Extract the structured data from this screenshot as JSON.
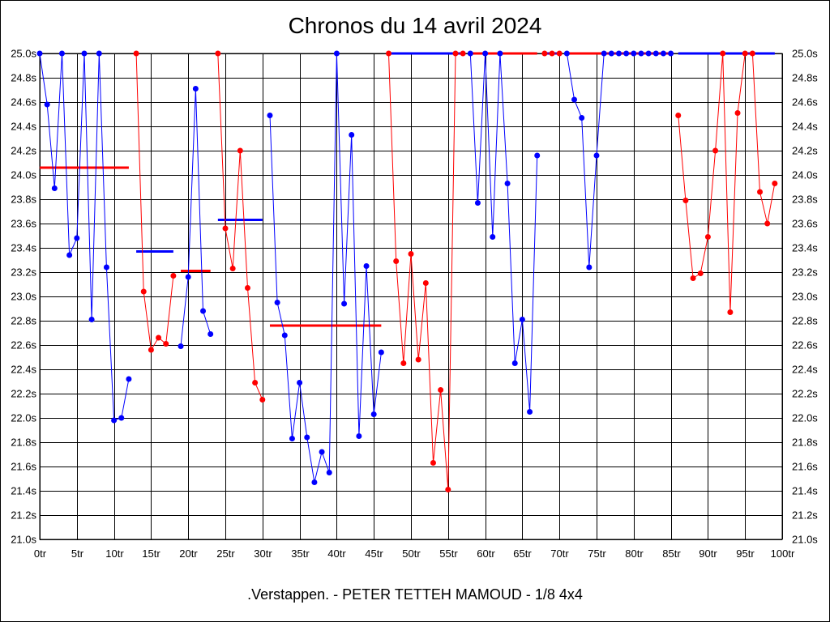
{
  "chart_data": {
    "type": "line",
    "title": "Chronos du 14 avril 2024",
    "footer": ".Verstappen. - PETER TETTEH MAMOUD - 1/8 4x4",
    "xlabel": "",
    "ylabel": "",
    "xlim": [
      0,
      100
    ],
    "ylim": [
      21.0,
      25.0
    ],
    "grid": true,
    "x_ticks": [
      "0tr",
      "5tr",
      "10tr",
      "15tr",
      "20tr",
      "25tr",
      "30tr",
      "35tr",
      "40tr",
      "45tr",
      "50tr",
      "55tr",
      "60tr",
      "65tr",
      "70tr",
      "75tr",
      "80tr",
      "85tr",
      "90tr",
      "95tr",
      "100tr"
    ],
    "y_ticks": [
      "21.0s",
      "21.2s",
      "21.4s",
      "21.6s",
      "21.8s",
      "22.0s",
      "22.2s",
      "22.4s",
      "22.6s",
      "22.8s",
      "23.0s",
      "23.2s",
      "23.4s",
      "23.6s",
      "23.8s",
      "24.0s",
      "24.2s",
      "24.4s",
      "24.6s",
      "24.8s",
      "25.0s"
    ],
    "colors": {
      "blue": "#0000ff",
      "red": "#ff0000"
    },
    "series": [
      {
        "color": "#0000ff",
        "points": [
          [
            0,
            25.0
          ],
          [
            1,
            24.58
          ],
          [
            2,
            23.89
          ],
          [
            3,
            25.0
          ],
          [
            4,
            23.34
          ],
          [
            5,
            23.48
          ],
          [
            6,
            25.0
          ],
          [
            7,
            22.81
          ],
          [
            8,
            25.0
          ],
          [
            9,
            23.24
          ],
          [
            10,
            21.98
          ],
          [
            11,
            22.0
          ],
          [
            12,
            22.32
          ]
        ]
      },
      {
        "color": "#ff0000",
        "points": [
          [
            13,
            25.0
          ],
          [
            14,
            23.04
          ],
          [
            15,
            22.56
          ],
          [
            16,
            22.66
          ],
          [
            17,
            22.61
          ],
          [
            18,
            23.17
          ]
        ]
      },
      {
        "color": "#0000ff",
        "points": [
          [
            19,
            22.59
          ],
          [
            20,
            23.16
          ],
          [
            21,
            24.71
          ],
          [
            22,
            22.88
          ],
          [
            23,
            22.69
          ]
        ]
      },
      {
        "color": "#ff0000",
        "points": [
          [
            24,
            25.0
          ],
          [
            25,
            23.56
          ],
          [
            26,
            23.23
          ],
          [
            27,
            24.2
          ],
          [
            28,
            23.07
          ],
          [
            29,
            22.29
          ],
          [
            30,
            22.15
          ]
        ]
      },
      {
        "color": "#0000ff",
        "points": [
          [
            31,
            24.49
          ],
          [
            32,
            22.95
          ],
          [
            33,
            22.68
          ],
          [
            34,
            21.83
          ],
          [
            35,
            22.29
          ],
          [
            36,
            21.84
          ],
          [
            37,
            21.47
          ],
          [
            38,
            21.72
          ],
          [
            39,
            21.55
          ],
          [
            40,
            25.0
          ],
          [
            41,
            22.94
          ],
          [
            42,
            24.33
          ],
          [
            43,
            21.85
          ],
          [
            44,
            23.25
          ],
          [
            45,
            22.03
          ],
          [
            46,
            22.54
          ]
        ]
      },
      {
        "color": "#ff0000",
        "points": [
          [
            47,
            25.0
          ],
          [
            48,
            23.29
          ],
          [
            49,
            22.45
          ],
          [
            50,
            23.35
          ],
          [
            51,
            22.48
          ],
          [
            52,
            23.11
          ],
          [
            53,
            21.63
          ],
          [
            54,
            22.23
          ],
          [
            55,
            21.41
          ],
          [
            56,
            25.0
          ],
          [
            57,
            25.0
          ]
        ]
      },
      {
        "color": "#0000ff",
        "points": [
          [
            58,
            25.0
          ],
          [
            59,
            23.77
          ],
          [
            60,
            25.0
          ],
          [
            61,
            23.49
          ],
          [
            62,
            25.0
          ],
          [
            63,
            23.93
          ],
          [
            64,
            22.45
          ],
          [
            65,
            22.81
          ],
          [
            66,
            22.05
          ],
          [
            67,
            24.16
          ]
        ]
      },
      {
        "color": "#ff0000",
        "points": [
          [
            68,
            25.0
          ],
          [
            69,
            25.0
          ],
          [
            70,
            25.0
          ]
        ]
      },
      {
        "color": "#0000ff",
        "points": [
          [
            71,
            25.0
          ],
          [
            72,
            24.62
          ],
          [
            73,
            24.47
          ],
          [
            74,
            23.24
          ],
          [
            75,
            24.16
          ],
          [
            76,
            25.0
          ],
          [
            77,
            25.0
          ],
          [
            78,
            25.0
          ],
          [
            79,
            25.0
          ],
          [
            80,
            25.0
          ],
          [
            81,
            25.0
          ],
          [
            82,
            25.0
          ],
          [
            83,
            25.0
          ],
          [
            84,
            25.0
          ],
          [
            85,
            25.0
          ]
        ]
      },
      {
        "color": "#ff0000",
        "points": [
          [
            86,
            24.49
          ],
          [
            87,
            23.79
          ],
          [
            88,
            23.15
          ],
          [
            89,
            23.19
          ],
          [
            90,
            23.49
          ],
          [
            91,
            24.2
          ],
          [
            92,
            25.0
          ],
          [
            93,
            22.87
          ],
          [
            94,
            24.51
          ],
          [
            95,
            25.0
          ],
          [
            96,
            25.0
          ],
          [
            97,
            23.86
          ],
          [
            98,
            23.6
          ],
          [
            99,
            23.93
          ]
        ]
      }
    ],
    "averages": [
      {
        "color": "#ff0000",
        "x": [
          0,
          12
        ],
        "y": 24.06
      },
      {
        "color": "#0000ff",
        "x": [
          13,
          18
        ],
        "y": 23.37
      },
      {
        "color": "#ff0000",
        "x": [
          19,
          23
        ],
        "y": 23.21
      },
      {
        "color": "#0000ff",
        "x": [
          24,
          30
        ],
        "y": 23.63
      },
      {
        "color": "#ff0000",
        "x": [
          31,
          46
        ],
        "y": 22.76
      },
      {
        "color": "#0000ff",
        "x": [
          47,
          57
        ],
        "y": 25.0
      },
      {
        "color": "#ff0000",
        "x": [
          58,
          67
        ],
        "y": 25.0
      },
      {
        "color": "#0000ff",
        "x": [
          68,
          70
        ],
        "y": 25.0
      },
      {
        "color": "#ff0000",
        "x": [
          71,
          85
        ],
        "y": 25.0
      },
      {
        "color": "#0000ff",
        "x": [
          86,
          99
        ],
        "y": 25.0
      }
    ]
  }
}
